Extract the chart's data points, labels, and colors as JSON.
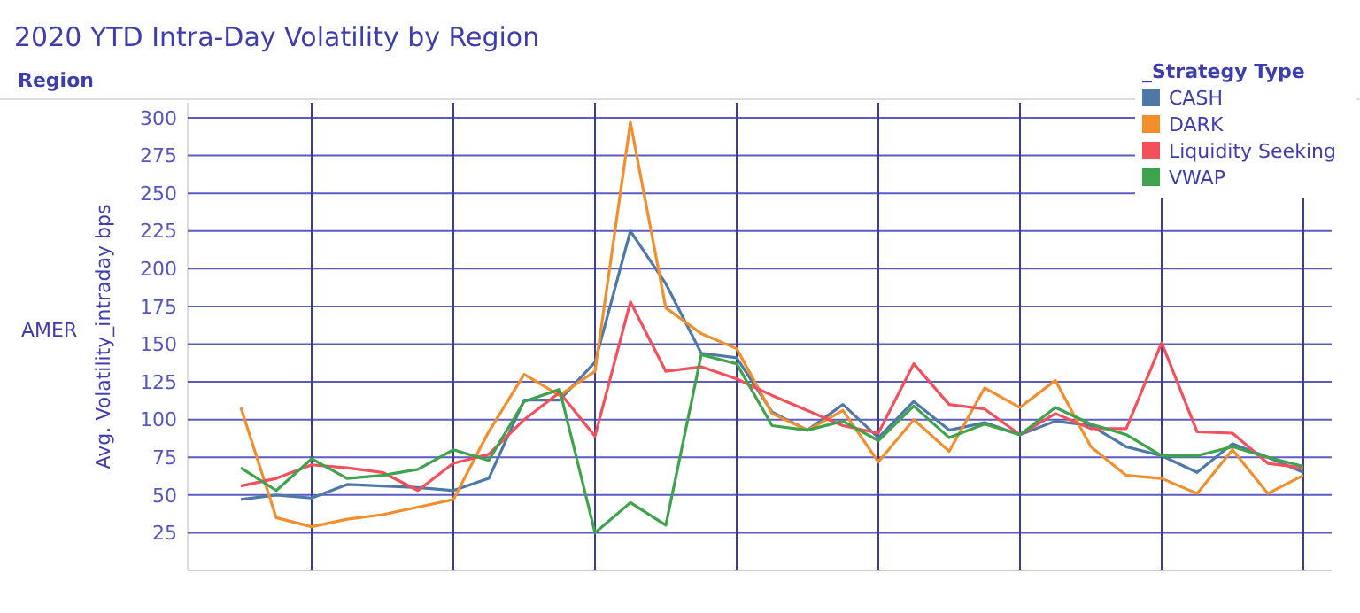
{
  "chart_data": {
    "type": "line",
    "title": "2020 YTD Intra-Day Volatility by Region",
    "ylabel": "Avg. Volatility_intraday bps",
    "legend_title": "_Strategy Type",
    "annotations": [
      "Region",
      "AMER"
    ],
    "categories": [
      null,
      null,
      null,
      null,
      null,
      null,
      null,
      null,
      null,
      null,
      null,
      null,
      null,
      null,
      null,
      null,
      null,
      null,
      null,
      null,
      null,
      null,
      null,
      null,
      null,
      null,
      null,
      null,
      null,
      null,
      null
    ],
    "series": [
      {
        "name": "CASH",
        "color": "#4e79a7",
        "values": [
          47,
          50,
          48,
          57,
          56,
          55,
          53,
          61,
          113,
          113,
          138,
          225,
          190,
          144,
          141,
          105,
          93,
          110,
          88,
          112,
          93,
          98,
          90,
          99,
          96,
          82,
          76,
          65,
          84,
          75,
          65
        ]
      },
      {
        "name": "DARK",
        "color": "#f28e2b",
        "values": [
          108,
          35,
          29,
          34,
          37,
          42,
          47,
          92,
          130,
          116,
          132,
          297,
          174,
          157,
          147,
          104,
          93,
          106,
          72,
          100,
          79,
          121,
          108,
          126,
          82,
          63,
          61,
          51,
          80,
          51,
          63
        ]
      },
      {
        "name": "Liquidity Seeking",
        "color": "#f4505c",
        "values": [
          56,
          61,
          70,
          68,
          65,
          53,
          71,
          77,
          100,
          118,
          89,
          178,
          132,
          135,
          127,
          116,
          106,
          96,
          91,
          137,
          110,
          107,
          90,
          104,
          94,
          94,
          151,
          92,
          91,
          71,
          68
        ]
      },
      {
        "name": "VWAP",
        "color": "#3fa34d",
        "values": [
          68,
          53,
          74,
          61,
          63,
          67,
          80,
          73,
          112,
          120,
          25,
          45,
          30,
          143,
          137,
          96,
          93,
          99,
          86,
          109,
          88,
          97,
          90,
          108,
          97,
          90,
          76,
          76,
          82,
          75,
          69
        ]
      }
    ],
    "ylim": [
      0,
      310
    ],
    "yticks": [
      25,
      50,
      75,
      100,
      125,
      150,
      175,
      200,
      225,
      250,
      275,
      300
    ],
    "grid": true,
    "legend": "top right",
    "marker": "none",
    "line_style": "solid"
  }
}
